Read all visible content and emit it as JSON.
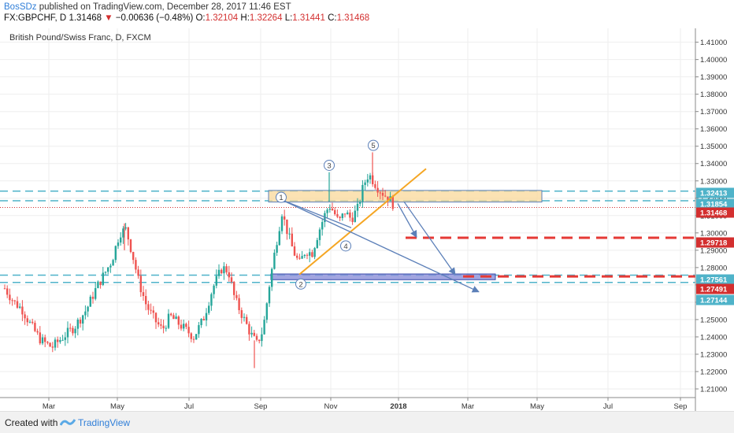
{
  "header": {
    "author": "BosSDz",
    "published_text": " published on TradingView.com, December 28, 2017 11:46 EST",
    "symbol": "FX:GBPCHF, D",
    "last": "1.31468",
    "change": "−0.00636 (−0.48%)",
    "open_label": "O:",
    "open": "1.32104",
    "high_label": "H:",
    "high": "1.32264",
    "low_label": "L:",
    "low": "1.31441",
    "close_label": "C:",
    "close": "1.31468"
  },
  "chart_data": {
    "type": "candlestick",
    "title": "British Pound/Swiss Franc, D, FXCM",
    "x_tick_labels": [
      "Mar",
      "May",
      "Jul",
      "Sep",
      "Nov",
      "2018",
      "Mar",
      "May",
      "Jul",
      "Sep"
    ],
    "y_tick_labels": [
      "1.21000",
      "1.22000",
      "1.23000",
      "1.24000",
      "1.25000",
      "1.26000",
      "1.27000",
      "1.28000",
      "1.29000",
      "1.30000",
      "1.31000",
      "1.32000",
      "1.33000",
      "1.34000",
      "1.35000",
      "1.36000",
      "1.37000",
      "1.38000",
      "1.39000",
      "1.40000",
      "1.41000"
    ],
    "ylim": [
      1.205,
      1.418
    ],
    "price_badges": [
      {
        "label": "1.32413",
        "value": 1.32413,
        "color": "#4fb3c9"
      },
      {
        "label": "1.31854",
        "value": 1.31854,
        "color": "#4fb3c9"
      },
      {
        "label": "1.31468",
        "value": 1.31468,
        "color": "#d32f2f"
      },
      {
        "label": "1.29718",
        "value": 1.29718,
        "color": "#d32f2f"
      },
      {
        "label": "1.27561",
        "value": 1.27561,
        "color": "#4fb3c9"
      },
      {
        "label": "1.27491",
        "value": 1.27491,
        "color": "#d32f2f"
      },
      {
        "label": "1.27144",
        "value": 1.27144,
        "color": "#4fb3c9"
      }
    ],
    "wave_labels": [
      "1",
      "2",
      "3",
      "4",
      "5"
    ],
    "colors": {
      "up": "#26a69a",
      "down": "#ef5350",
      "cyan_dash": "#4fb3c9",
      "red_dash": "#e53935",
      "trend": "#f5a623",
      "arrow": "#5b7fb8",
      "zone_top": "#f9d89a",
      "zone_bottom": "#8b8fd8"
    }
  },
  "footer": {
    "created_with": "Created with",
    "brand": "TradingView"
  }
}
